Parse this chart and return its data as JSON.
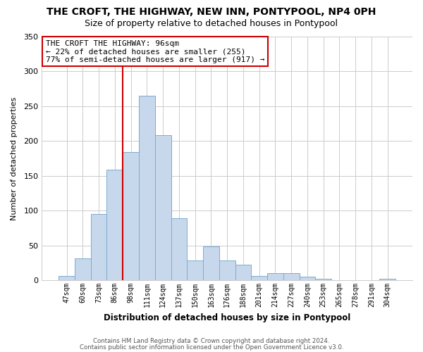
{
  "title": "THE CROFT, THE HIGHWAY, NEW INN, PONTYPOOL, NP4 0PH",
  "subtitle": "Size of property relative to detached houses in Pontypool",
  "xlabel": "Distribution of detached houses by size in Pontypool",
  "ylabel": "Number of detached properties",
  "bar_labels": [
    "47sqm",
    "60sqm",
    "73sqm",
    "86sqm",
    "98sqm",
    "111sqm",
    "124sqm",
    "137sqm",
    "150sqm",
    "163sqm",
    "176sqm",
    "188sqm",
    "201sqm",
    "214sqm",
    "227sqm",
    "240sqm",
    "253sqm",
    "265sqm",
    "278sqm",
    "291sqm",
    "304sqm"
  ],
  "bar_values": [
    6,
    31,
    95,
    159,
    184,
    265,
    208,
    89,
    28,
    49,
    28,
    22,
    6,
    10,
    10,
    5,
    2,
    0,
    0,
    0,
    2
  ],
  "bar_color": "#c8d8ec",
  "bar_edge_color": "#7aaccf",
  "annotation_title": "THE CROFT THE HIGHWAY: 96sqm",
  "annotation_line1": "← 22% of detached houses are smaller (255)",
  "annotation_line2": "77% of semi-detached houses are larger (917) →",
  "annotation_box_edge": "#cc0000",
  "vline_color": "#cc0000",
  "vline_x": 3.5,
  "ylim": [
    0,
    350
  ],
  "yticks": [
    0,
    50,
    100,
    150,
    200,
    250,
    300,
    350
  ],
  "bg_color": "#ffffff",
  "plot_bg_color": "#ffffff",
  "grid_color": "#cccccc",
  "footer1": "Contains HM Land Registry data © Crown copyright and database right 2024.",
  "footer2": "Contains public sector information licensed under the Open Government Licence v3.0."
}
